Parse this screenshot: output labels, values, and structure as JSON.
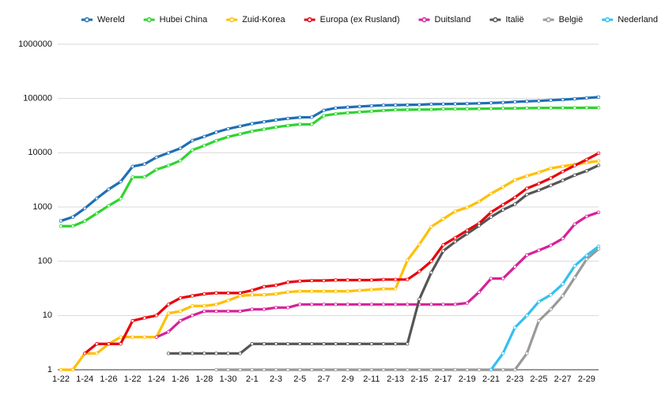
{
  "chart_data": {
    "type": "line",
    "log_scale": true,
    "grid": true,
    "legend": "top",
    "categories": [
      "1-22",
      null,
      "1-24",
      null,
      "1-26",
      null,
      "1-22",
      null,
      "1-24",
      null,
      "1-26",
      null,
      "1-28",
      null,
      "1-30",
      null,
      "2-1",
      null,
      "2-3",
      null,
      "2-5",
      null,
      "2-7",
      null,
      "2-9",
      null,
      "2-11",
      null,
      "2-13",
      null,
      "2-15",
      null,
      "2-17",
      null,
      "2-19",
      null,
      "2-21",
      null,
      "2-23",
      null,
      "2-25",
      null,
      "2-27",
      null,
      "2-29",
      null
    ],
    "ylim": [
      1,
      1000000
    ],
    "yticks": [
      1,
      10,
      100,
      1000,
      10000,
      100000,
      1000000
    ],
    "series": [
      {
        "name": "Wereld",
        "color": "#1f6fb5",
        "values": [
          555,
          654,
          941,
          1434,
          2118,
          2927,
          5578,
          6166,
          8235,
          9925,
          12038,
          16787,
          19881,
          23892,
          27636,
          30818,
          34392,
          37121,
          40151,
          42763,
          44802,
          45221,
          60368,
          66885,
          69030,
          71224,
          73258,
          75136,
          75639,
          76197,
          76819,
          78572,
          78958,
          79561,
          80406,
          81388,
          82746,
          84112,
          86604,
          88585,
          90443,
          93016,
          95314,
          98425,
          102050,
          106099
        ]
      },
      {
        "name": "Hubei China",
        "color": "#2fd42f",
        "values": [
          444,
          444,
          549,
          761,
          1058,
          1423,
          3554,
          3554,
          4903,
          5806,
          7153,
          11177,
          13522,
          16678,
          19665,
          22112,
          24953,
          27100,
          29631,
          31728,
          33366,
          33366,
          48206,
          51986,
          54406,
          56249,
          58182,
          59989,
          61682,
          62031,
          62442,
          62662,
          64084,
          64084,
          64287,
          64786,
          65187,
          65596,
          65914,
          66337,
          66907,
          67103,
          67217,
          67332,
          67466,
          67592
        ]
      },
      {
        "name": "Zuid-Korea",
        "color": "#ffbf00",
        "values": [
          1,
          1,
          2,
          2,
          3,
          4,
          4,
          4,
          4,
          11,
          12,
          15,
          15,
          16,
          19,
          23,
          24,
          24,
          25,
          27,
          28,
          28,
          28,
          28,
          28,
          29,
          30,
          31,
          31,
          104,
          204,
          433,
          602,
          833,
          977,
          1261,
          1766,
          2337,
          3150,
          3736,
          4335,
          5186,
          5621,
          6088,
          6593,
          7041
        ]
      },
      {
        "name": "Europa (ex Rusland)",
        "color": "#e8000b",
        "values": [
          null,
          null,
          2,
          3,
          3,
          3,
          8,
          9,
          10,
          16,
          21,
          23,
          25,
          26,
          26,
          26,
          29,
          34,
          36,
          41,
          43,
          44,
          44,
          45,
          45,
          45,
          45,
          46,
          46,
          46,
          65,
          100,
          200,
          270,
          370,
          500,
          800,
          1100,
          1500,
          2200,
          2700,
          3400,
          4500,
          5800,
          7500,
          9800
        ]
      },
      {
        "name": "Duitsland",
        "color": "#d6219a",
        "values": [
          null,
          null,
          null,
          null,
          null,
          null,
          null,
          null,
          4,
          5,
          8,
          10,
          12,
          12,
          12,
          12,
          13,
          13,
          14,
          14,
          16,
          16,
          16,
          16,
          16,
          16,
          16,
          16,
          16,
          16,
          16,
          16,
          16,
          16,
          17,
          27,
          48,
          48,
          79,
          130,
          159,
          196,
          262,
          482,
          670,
          800
        ]
      },
      {
        "name": "Italië",
        "color": "#555555",
        "values": [
          null,
          null,
          null,
          null,
          null,
          null,
          null,
          null,
          null,
          2,
          2,
          2,
          2,
          2,
          2,
          2,
          3,
          3,
          3,
          3,
          3,
          3,
          3,
          3,
          3,
          3,
          3,
          3,
          3,
          3,
          20,
          62,
          155,
          229,
          322,
          453,
          655,
          888,
          1128,
          1694,
          2036,
          2502,
          3089,
          3858,
          4636,
          5883
        ]
      },
      {
        "name": "België",
        "color": "#999999",
        "values": [
          null,
          null,
          null,
          null,
          null,
          null,
          null,
          null,
          null,
          null,
          null,
          null,
          null,
          1,
          1,
          1,
          1,
          1,
          1,
          1,
          1,
          1,
          1,
          1,
          1,
          1,
          1,
          1,
          1,
          1,
          1,
          1,
          1,
          1,
          1,
          1,
          1,
          1,
          1,
          2,
          8,
          13,
          23,
          50,
          109,
          169
        ]
      },
      {
        "name": "Nederland",
        "color": "#33c0f0",
        "values": [
          null,
          null,
          null,
          null,
          null,
          null,
          null,
          null,
          null,
          null,
          null,
          null,
          null,
          null,
          null,
          null,
          null,
          null,
          null,
          null,
          null,
          null,
          null,
          null,
          null,
          null,
          null,
          null,
          null,
          null,
          null,
          null,
          null,
          null,
          null,
          null,
          1,
          2,
          6,
          10,
          18,
          24,
          38,
          82,
          128,
          188
        ]
      }
    ]
  }
}
